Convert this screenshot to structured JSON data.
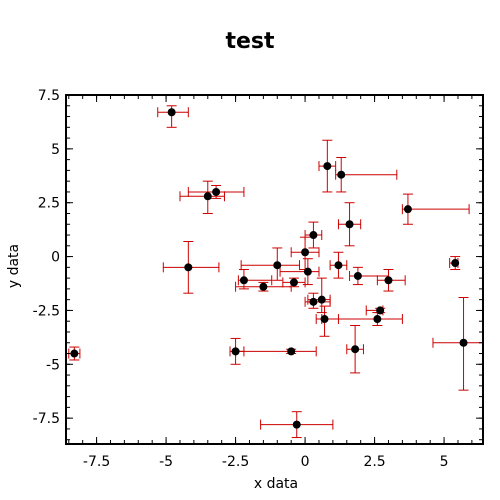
{
  "chart_data": {
    "type": "scatter",
    "title": "test",
    "xlabel": "x data",
    "ylabel": "y data",
    "xlim": [
      -8.6,
      6.4
    ],
    "ylim": [
      -8.7,
      7.5
    ],
    "xticks": [
      -7.5,
      -5,
      -2.5,
      0,
      2.5,
      5
    ],
    "xtick_labels": [
      "-7.5",
      "-5",
      "-2.5",
      "0",
      "2.5",
      "5"
    ],
    "yticks": [
      -7.5,
      -5,
      -2.5,
      0,
      2.5,
      5,
      7.5
    ],
    "ytick_labels": [
      "-7.5",
      "-5",
      "-2.5",
      "0",
      "2.5",
      "5",
      "7.5"
    ],
    "grid": false,
    "marker_color": "#000000",
    "errorbar_color": "#cc0000",
    "points": [
      {
        "x": -8.3,
        "y": -4.5,
        "xerr": [
          0.2,
          0.2
        ],
        "yerr": [
          0.3,
          0.3
        ]
      },
      {
        "x": -4.8,
        "y": 6.7,
        "xerr": [
          0.5,
          0.6
        ],
        "yerr": [
          0.7,
          0.3
        ]
      },
      {
        "x": -3.5,
        "y": 2.8,
        "xerr": [
          1.0,
          0.6
        ],
        "yerr": [
          0.8,
          0.7
        ]
      },
      {
        "x": -3.2,
        "y": 3.0,
        "xerr": [
          1.0,
          1.0
        ],
        "yerr": [
          0.3,
          0.3
        ]
      },
      {
        "x": -4.2,
        "y": -0.5,
        "xerr": [
          0.9,
          1.1
        ],
        "yerr": [
          1.2,
          1.2
        ]
      },
      {
        "x": -2.2,
        "y": -1.1,
        "xerr": [
          0.2,
          1.0
        ],
        "yerr": [
          0.4,
          0.5
        ]
      },
      {
        "x": -1.5,
        "y": -1.4,
        "xerr": [
          1.0,
          1.0
        ],
        "yerr": [
          0.2,
          0.2
        ]
      },
      {
        "x": -1.0,
        "y": -0.4,
        "xerr": [
          1.3,
          0.8
        ],
        "yerr": [
          0.7,
          0.8
        ]
      },
      {
        "x": -0.4,
        "y": -1.2,
        "xerr": [
          0.4,
          0.4
        ],
        "yerr": [
          0.2,
          0.2
        ]
      },
      {
        "x": 0.0,
        "y": 0.2,
        "xerr": [
          0.5,
          0.5
        ],
        "yerr": [
          0.8,
          0.7
        ]
      },
      {
        "x": 0.1,
        "y": -0.7,
        "xerr": [
          1.0,
          0.4
        ],
        "yerr": [
          0.6,
          0.6
        ]
      },
      {
        "x": 0.3,
        "y": 1.0,
        "xerr": [
          0.3,
          0.3
        ],
        "yerr": [
          0.6,
          0.6
        ]
      },
      {
        "x": 0.3,
        "y": -2.1,
        "xerr": [
          0.3,
          0.6
        ],
        "yerr": [
          0.3,
          0.4
        ]
      },
      {
        "x": 0.6,
        "y": -2.0,
        "xerr": [
          0.5,
          0.3
        ],
        "yerr": [
          0.6,
          1.0
        ]
      },
      {
        "x": 0.7,
        "y": -2.9,
        "xerr": [
          0.3,
          0.5
        ],
        "yerr": [
          0.8,
          0.6
        ]
      },
      {
        "x": 0.8,
        "y": 4.2,
        "xerr": [
          0.3,
          0.3
        ],
        "yerr": [
          1.2,
          1.2
        ]
      },
      {
        "x": 1.2,
        "y": -0.4,
        "xerr": [
          0.3,
          0.3
        ],
        "yerr": [
          0.6,
          0.6
        ]
      },
      {
        "x": 1.3,
        "y": 3.8,
        "xerr": [
          0.2,
          2.0
        ],
        "yerr": [
          0.8,
          0.8
        ]
      },
      {
        "x": 1.6,
        "y": 1.5,
        "xerr": [
          0.4,
          0.4
        ],
        "yerr": [
          1.0,
          1.0
        ]
      },
      {
        "x": 1.8,
        "y": -4.3,
        "xerr": [
          0.3,
          0.3
        ],
        "yerr": [
          1.1,
          1.1
        ]
      },
      {
        "x": 1.9,
        "y": -0.9,
        "xerr": [
          0.3,
          1.1
        ],
        "yerr": [
          0.4,
          0.4
        ]
      },
      {
        "x": 2.6,
        "y": -2.9,
        "xerr": [
          2.0,
          0.9
        ],
        "yerr": [
          0.3,
          0.3
        ]
      },
      {
        "x": 2.7,
        "y": -2.5,
        "xerr": [
          0.5,
          0.1
        ],
        "yerr": [
          0.1,
          0.1
        ]
      },
      {
        "x": 3.0,
        "y": -1.1,
        "xerr": [
          0.4,
          0.6
        ],
        "yerr": [
          0.5,
          0.5
        ]
      },
      {
        "x": 3.7,
        "y": 2.2,
        "xerr": [
          0.2,
          2.2
        ],
        "yerr": [
          0.7,
          0.7
        ]
      },
      {
        "x": 5.4,
        "y": -0.3,
        "xerr": [
          0.2,
          0.1
        ],
        "yerr": [
          0.3,
          0.3
        ]
      },
      {
        "x": 5.7,
        "y": -4.0,
        "xerr": [
          1.1,
          0.7
        ],
        "yerr": [
          2.2,
          2.1
        ]
      },
      {
        "x": -0.5,
        "y": -4.4,
        "xerr": [
          2.0,
          0.9
        ],
        "yerr": [
          0.1,
          0.1
        ]
      },
      {
        "x": -2.5,
        "y": -4.4,
        "xerr": [
          0.2,
          0.3
        ],
        "yerr": [
          0.6,
          0.6
        ]
      },
      {
        "x": -0.3,
        "y": -7.8,
        "xerr": [
          1.3,
          1.3
        ],
        "yerr": [
          0.6,
          0.6
        ]
      }
    ]
  }
}
